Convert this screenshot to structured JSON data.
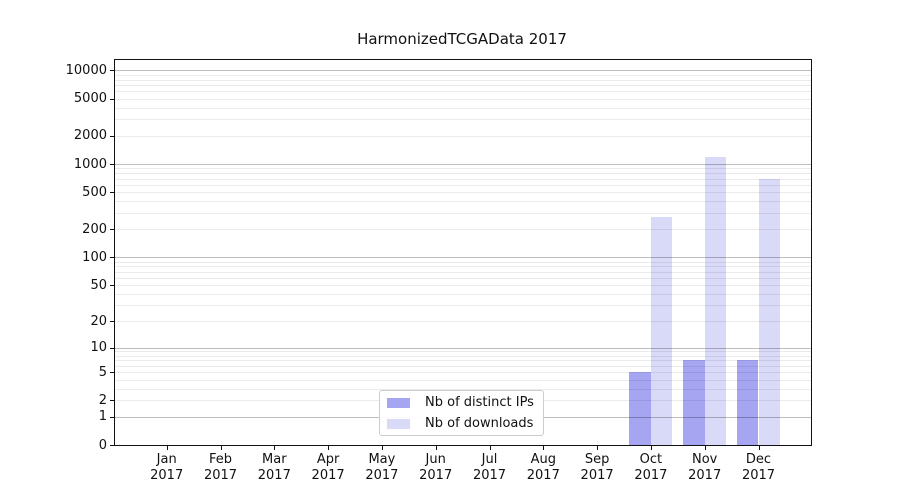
{
  "chart_data": {
    "type": "bar",
    "title": "HarmonizedTCGAData 2017",
    "year_label": "2017",
    "categories": [
      "Jan",
      "Feb",
      "Mar",
      "Apr",
      "May",
      "Jun",
      "Jul",
      "Aug",
      "Sep",
      "Oct",
      "Nov",
      "Dec"
    ],
    "series": [
      {
        "name": "Nb of distinct IPs",
        "color": "#a5a5f1",
        "values": [
          0,
          0,
          0,
          0,
          0,
          0,
          0,
          0,
          0,
          5,
          7,
          7
        ]
      },
      {
        "name": "Nb of downloads",
        "color": "#d9d9f8",
        "values": [
          0,
          0,
          0,
          0,
          0,
          0,
          0,
          0,
          0,
          270,
          1200,
          700
        ]
      }
    ],
    "y_ticks": [
      0,
      1,
      2,
      5,
      10,
      20,
      50,
      100,
      200,
      500,
      1000,
      2000,
      5000,
      10000
    ],
    "y_scale": "log10(value+1)",
    "ylim": [
      0,
      13000
    ],
    "xlabel": "",
    "ylabel": "",
    "grid": "horizontal major (powers of 10, darker) + minor (lighter)",
    "legend_position": "bottom-center inside plot"
  }
}
